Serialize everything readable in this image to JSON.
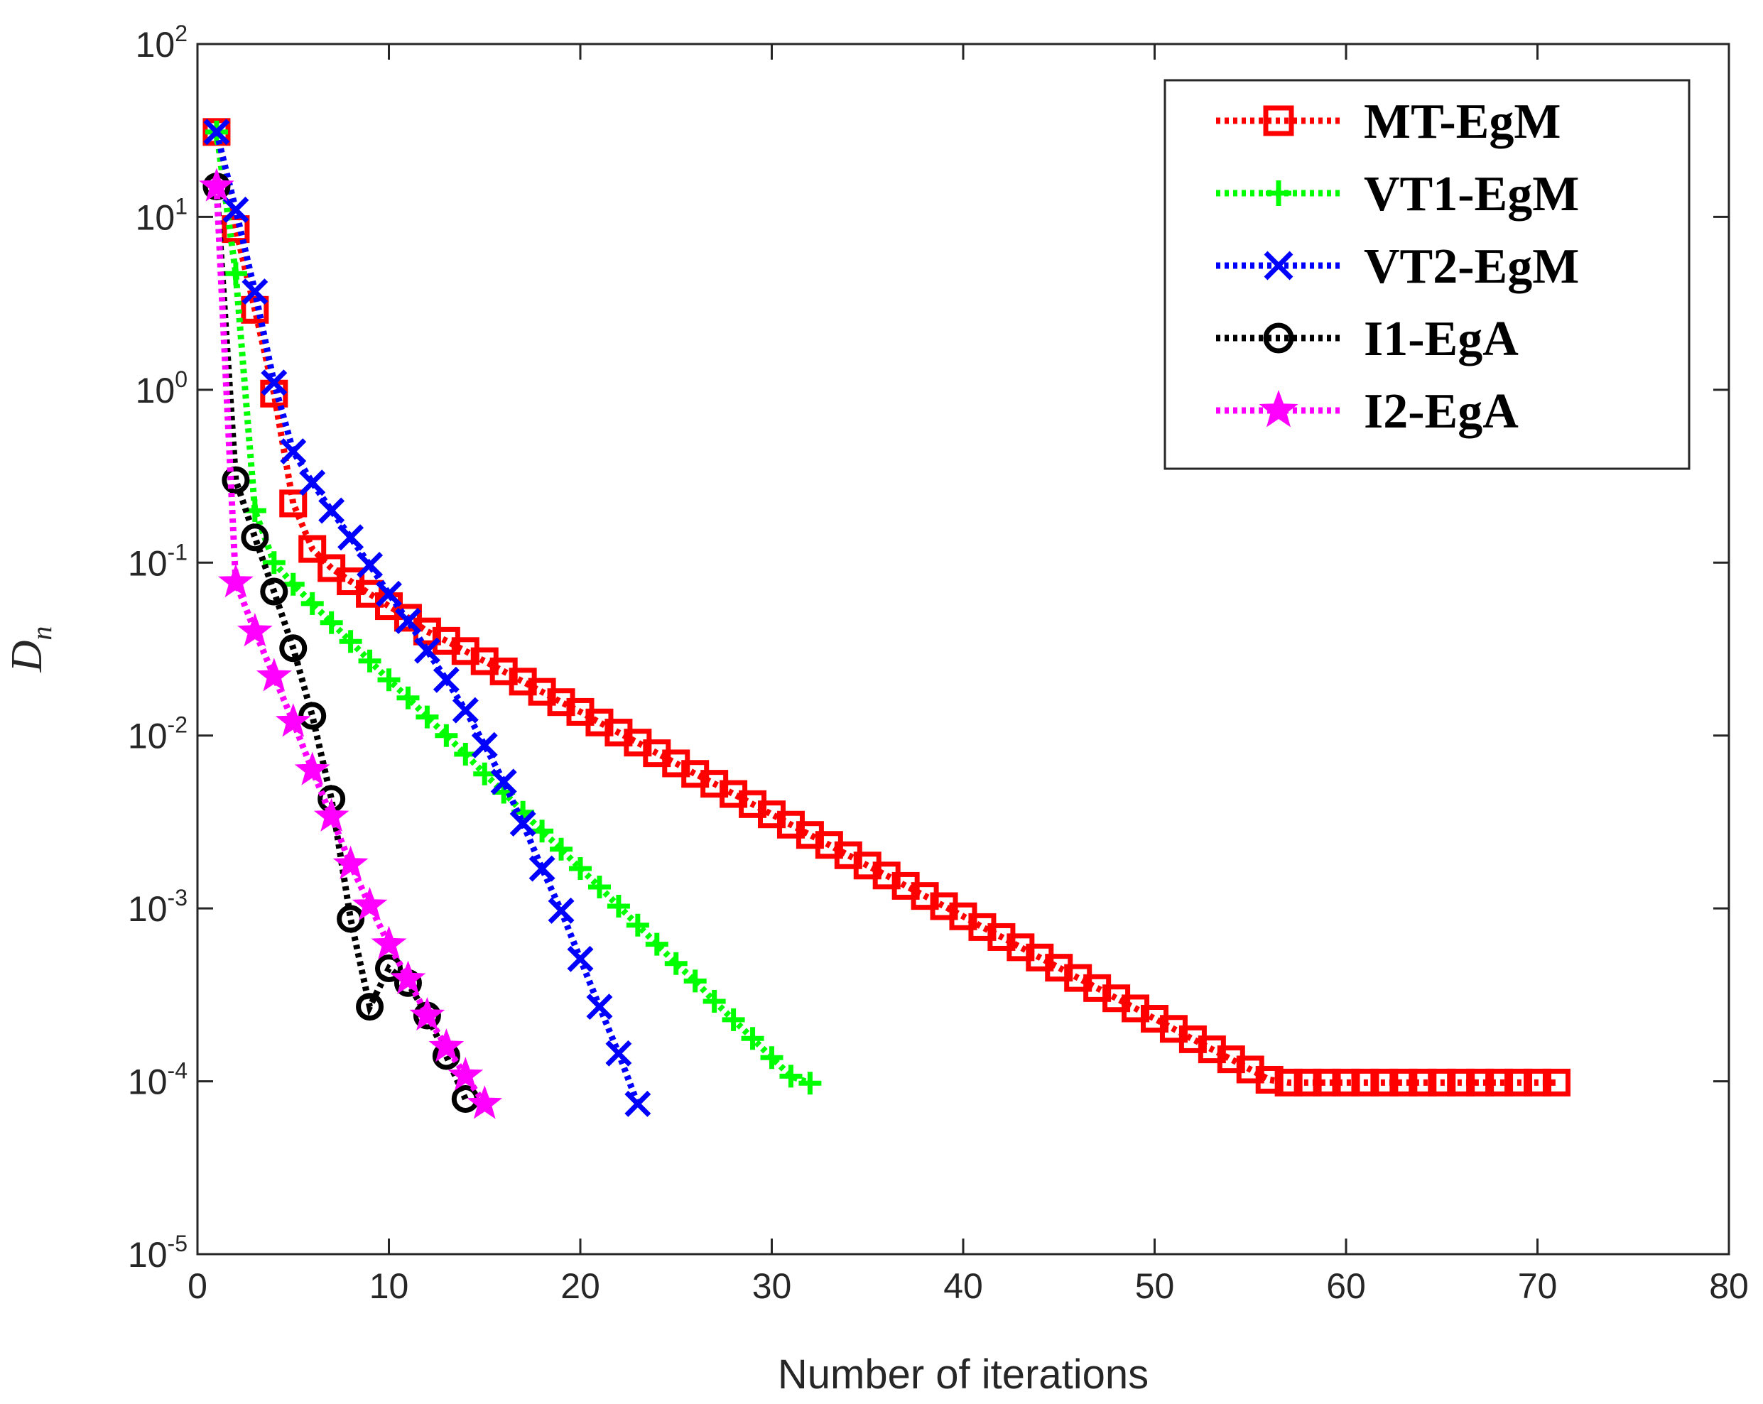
{
  "chart_data": {
    "type": "line",
    "title": "",
    "xlabel": "Number of iterations",
    "ylabel": {
      "main": "D",
      "sub": "n"
    },
    "xlim": [
      0,
      80
    ],
    "ylim_log10": [
      -5,
      2
    ],
    "yscale": "log",
    "grid": false,
    "legend_position": "top-right",
    "x_ticks": [
      {
        "value": 0,
        "label": "0"
      },
      {
        "value": 10,
        "label": "10"
      },
      {
        "value": 20,
        "label": "20"
      },
      {
        "value": 30,
        "label": "30"
      },
      {
        "value": 40,
        "label": "40"
      },
      {
        "value": 50,
        "label": "50"
      },
      {
        "value": 60,
        "label": "60"
      },
      {
        "value": 70,
        "label": "70"
      },
      {
        "value": 80,
        "label": "80"
      }
    ],
    "y_ticks": [
      {
        "exp": 2,
        "base": "10",
        "power": "2"
      },
      {
        "exp": 1,
        "base": "10",
        "power": "1"
      },
      {
        "exp": 0,
        "base": "10",
        "power": "0"
      },
      {
        "exp": -1,
        "base": "10",
        "power": "-1"
      },
      {
        "exp": -2,
        "base": "10",
        "power": "-2"
      },
      {
        "exp": -3,
        "base": "10",
        "power": "-3"
      },
      {
        "exp": -4,
        "base": "10",
        "power": "-4"
      },
      {
        "exp": -5,
        "base": "10",
        "power": "-5"
      }
    ],
    "series": [
      {
        "name": "MT-EgM",
        "color": "#ff0000",
        "marker": "square",
        "x": [
          1,
          2,
          3,
          4,
          5,
          6,
          7,
          8,
          9,
          10,
          11,
          12,
          13,
          14,
          15,
          16,
          17,
          18,
          19,
          20,
          21,
          22,
          23,
          24,
          25,
          26,
          27,
          28,
          29,
          30,
          31,
          32,
          33,
          34,
          35,
          36,
          37,
          38,
          39,
          40,
          41,
          42,
          43,
          44,
          45,
          46,
          47,
          48,
          49,
          50,
          51,
          52,
          53,
          54,
          55,
          56,
          57,
          58,
          59,
          60,
          61,
          62,
          63,
          64,
          65,
          66,
          67,
          68,
          69,
          70,
          71
        ],
        "y": [
          31,
          8.5,
          2.9,
          0.95,
          0.22,
          0.12,
          0.093,
          0.078,
          0.066,
          0.056,
          0.048,
          0.04,
          0.0353,
          0.0308,
          0.0269,
          0.0235,
          0.0205,
          0.0179,
          0.0156,
          0.0137,
          0.0119,
          0.0104,
          0.0091,
          0.0079,
          0.0069,
          0.006,
          0.00526,
          0.00459,
          0.00401,
          0.0035,
          0.00305,
          0.00266,
          0.00233,
          0.00203,
          0.00177,
          0.00155,
          0.00135,
          0.00118,
          0.00103,
          0.0009,
          0.00078,
          0.000683,
          0.000596,
          0.00052,
          0.000454,
          0.000396,
          0.000346,
          0.000302,
          0.000264,
          0.00023,
          0.000201,
          0.000175,
          0.000153,
          0.000134,
          0.000117,
          0.000102,
          9.83e-05,
          9.83e-05,
          9.83e-05,
          9.83e-05,
          9.83e-05,
          9.83e-05,
          9.83e-05,
          9.83e-05,
          9.83e-05,
          9.83e-05,
          9.83e-05,
          9.83e-05,
          9.83e-05,
          9.83e-05,
          9.83e-05
        ]
      },
      {
        "name": "VT1-EgM",
        "color": "#00ff00",
        "marker": "plus",
        "x": [
          1,
          2,
          3,
          4,
          5,
          6,
          7,
          8,
          9,
          10,
          11,
          12,
          13,
          14,
          15,
          16,
          17,
          18,
          19,
          20,
          21,
          22,
          23,
          24,
          25,
          26,
          27,
          28,
          29,
          30,
          31,
          32
        ],
        "y": [
          31,
          4.7,
          0.2,
          0.1,
          0.075,
          0.058,
          0.045,
          0.035,
          0.027,
          0.021,
          0.0165,
          0.0128,
          0.01,
          0.0078,
          0.006,
          0.0047,
          0.0036,
          0.0028,
          0.0022,
          0.0017,
          0.00133,
          0.00103,
          0.0008,
          0.00062,
          0.00048,
          0.00038,
          0.00029,
          0.000227,
          0.000177,
          0.000137,
          0.000107,
          9.75e-05
        ]
      },
      {
        "name": "VT2-EgM",
        "color": "#0000ff",
        "marker": "x",
        "x": [
          1,
          2,
          3,
          4,
          5,
          6,
          7,
          8,
          9,
          10,
          11,
          12,
          13,
          14,
          15,
          16,
          17,
          18,
          19,
          20,
          21,
          22,
          23
        ],
        "y": [
          31,
          11,
          3.7,
          1.1,
          0.44,
          0.29,
          0.2,
          0.14,
          0.097,
          0.066,
          0.046,
          0.031,
          0.021,
          0.014,
          0.0088,
          0.0054,
          0.0031,
          0.0017,
          0.00097,
          0.00051,
          0.00027,
          0.000145,
          7.4e-05
        ]
      },
      {
        "name": "I1-EgA",
        "color": "#000000",
        "marker": "circle",
        "x": [
          1,
          2,
          3,
          4,
          5,
          6,
          7,
          8,
          9,
          10,
          11,
          12,
          13,
          14
        ],
        "y": [
          15,
          0.3,
          0.14,
          0.068,
          0.032,
          0.013,
          0.0043,
          0.00087,
          0.00027,
          0.00045,
          0.00037,
          0.00024,
          0.00014,
          7.9e-05
        ]
      },
      {
        "name": "I2-EgA",
        "color": "#ff00ff",
        "marker": "star",
        "x": [
          1,
          2,
          3,
          4,
          5,
          6,
          7,
          8,
          9,
          10,
          11,
          12,
          13,
          14,
          15
        ],
        "y": [
          15,
          0.077,
          0.04,
          0.022,
          0.012,
          0.0063,
          0.0034,
          0.0018,
          0.00104,
          0.00062,
          0.00039,
          0.00024,
          0.000158,
          0.000108,
          7.4e-05
        ]
      }
    ]
  }
}
